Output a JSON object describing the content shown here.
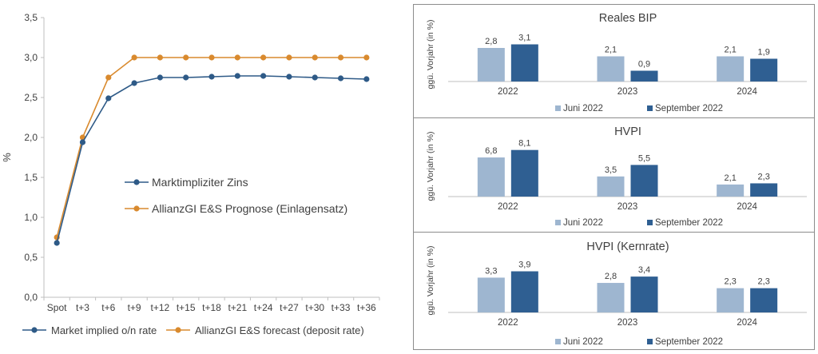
{
  "colors": {
    "market": "#2e5a87",
    "allianz": "#d98a2e",
    "juni": "#9eb6d0",
    "september": "#2f5f92",
    "axis": "#bfbfbf",
    "text": "#404040"
  },
  "chart_data": [
    {
      "type": "line",
      "title": "",
      "xlabel": "",
      "ylabel": "%",
      "ylim": [
        0,
        3.5
      ],
      "yticks": [
        "0,0",
        "0,5",
        "1,0",
        "1,5",
        "2,0",
        "2,5",
        "3,0",
        "3,5"
      ],
      "grid": false,
      "categories": [
        "Spot",
        "t+3",
        "t+6",
        "t+9",
        "t+12",
        "t+15",
        "t+18",
        "t+21",
        "t+24",
        "t+27",
        "t+30",
        "t+33",
        "t+36"
      ],
      "series": [
        {
          "name": "Market implied o/n rate",
          "inline_label": "Marktimpliziter Zins",
          "color_key": "market",
          "values": [
            0.68,
            1.94,
            2.49,
            2.68,
            2.75,
            2.75,
            2.76,
            2.77,
            2.77,
            2.76,
            2.75,
            2.74,
            2.73
          ]
        },
        {
          "name": "AllianzGI E&S forecast (deposit rate)",
          "inline_label": "AllianzGI E&S Prognose (Einlagensatz)",
          "color_key": "allianz",
          "values": [
            0.75,
            2.0,
            2.75,
            3.0,
            3.0,
            3.0,
            3.0,
            3.0,
            3.0,
            3.0,
            3.0,
            3.0,
            3.0
          ]
        }
      ],
      "legend_position": "bottom"
    },
    {
      "type": "bar",
      "title": "Reales BIP",
      "ylabel": "ggü. Vorjahr (in %)",
      "categories": [
        "2022",
        "2023",
        "2024"
      ],
      "series": [
        {
          "name": "Juni 2022",
          "values": [
            2.8,
            2.1,
            2.1
          ],
          "labels": [
            "2,8",
            "2,1",
            "2,1"
          ]
        },
        {
          "name": "September 2022",
          "values": [
            3.1,
            0.9,
            1.9
          ],
          "labels": [
            "3,1",
            "0,9",
            "1,9"
          ]
        }
      ],
      "legend_position": "bottom"
    },
    {
      "type": "bar",
      "title": "HVPI",
      "ylabel": "ggü. Vorjahr (in %)",
      "categories": [
        "2022",
        "2023",
        "2024"
      ],
      "series": [
        {
          "name": "Juni 2022",
          "values": [
            6.8,
            3.5,
            2.1
          ],
          "labels": [
            "6,8",
            "3,5",
            "2,1"
          ]
        },
        {
          "name": "September 2022",
          "values": [
            8.1,
            5.5,
            2.3
          ],
          "labels": [
            "8,1",
            "5,5",
            "2,3"
          ]
        }
      ],
      "legend_position": "bottom"
    },
    {
      "type": "bar",
      "title": "HVPI (Kernrate)",
      "ylabel": "ggü. Vorjahr (in %)",
      "categories": [
        "2022",
        "2023",
        "2024"
      ],
      "series": [
        {
          "name": "Juni 2022",
          "values": [
            3.3,
            2.8,
            2.3
          ],
          "labels": [
            "3,3",
            "2,8",
            "2,3"
          ]
        },
        {
          "name": "September 2022",
          "values": [
            3.9,
            3.4,
            2.3
          ],
          "labels": [
            "3,9",
            "3,4",
            "2,3"
          ]
        }
      ],
      "legend_position": "bottom"
    }
  ]
}
